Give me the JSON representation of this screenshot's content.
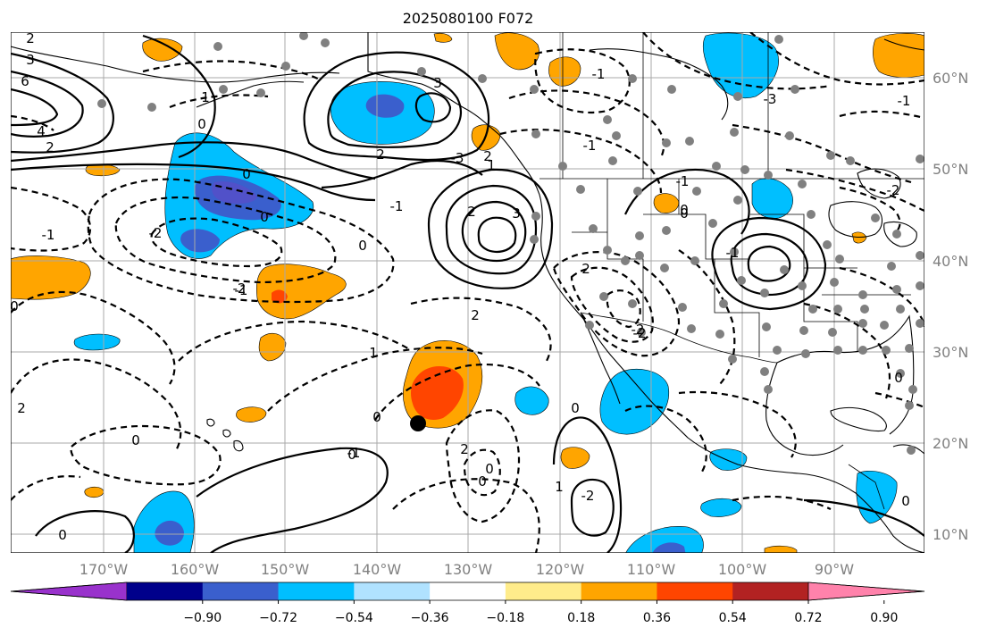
{
  "title": "2025080100 F072",
  "lon_labels": [
    "170°W",
    "160°W",
    "150°W",
    "140°W",
    "130°W",
    "120°W",
    "110°W",
    "100°W",
    "90°W"
  ],
  "lat_labels": [
    "60°N",
    "50°N",
    "40°N",
    "30°N",
    "20°N",
    "10°N"
  ],
  "colorbar": {
    "tick_labels": [
      "−0.90",
      "−0.72",
      "−0.54",
      "−0.36",
      "−0.18",
      "0.18",
      "0.36",
      "0.54",
      "0.72",
      "0.90"
    ],
    "colors": [
      "#9932cc",
      "#00008b",
      "#3a5fcd",
      "#00bfff",
      "#b0e2ff",
      "#ffffff",
      "#ffec8b",
      "#ffa500",
      "#ff4500",
      "#b22222",
      "#ff82ab"
    ]
  },
  "contour_labels": [
    "2",
    "3",
    "6",
    "4",
    "2",
    "0",
    "1",
    "-1",
    "3",
    "2",
    "0",
    "3",
    "0",
    "-3",
    "2",
    "1",
    "-1",
    "-2",
    "2",
    "-2",
    "0",
    "-1",
    "2",
    "0",
    "1",
    "2",
    "0",
    "0",
    "-1",
    "-2",
    "0",
    "1",
    "2",
    "0",
    "0",
    "-1",
    "0",
    "-1",
    "-3",
    "-1",
    "-2",
    "0",
    "2",
    "0",
    "-1",
    "-2",
    "0",
    "0",
    "-2",
    "0",
    "-1"
  ],
  "marker": {
    "label": "storm-center",
    "lon": -135.2,
    "lat": 22.2
  }
}
